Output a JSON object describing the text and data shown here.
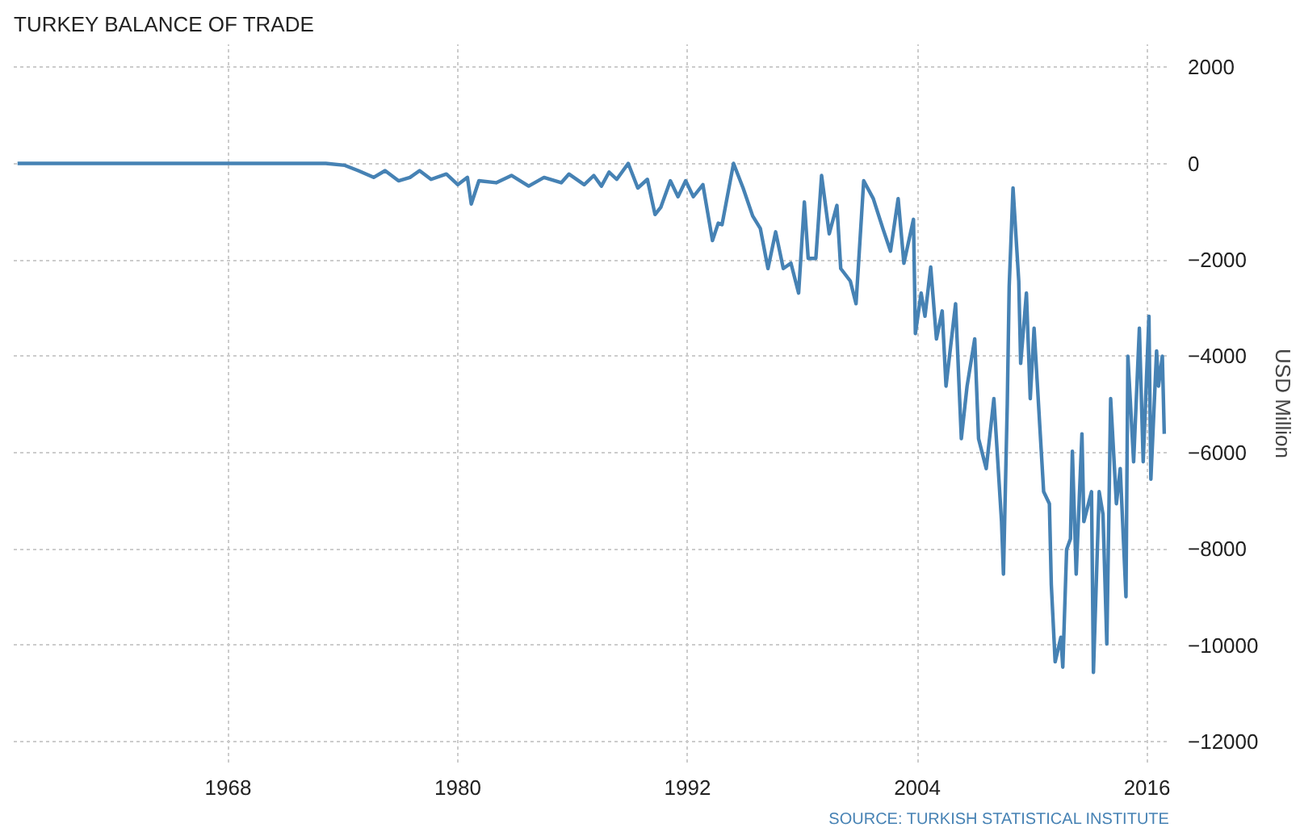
{
  "chart_data": {
    "type": "line",
    "title": "TURKEY BALANCE OF TRADE",
    "ylabel": "USD Million",
    "annotations": [
      "SOURCE: TURKISH STATISTICAL INSTITUTE"
    ],
    "x": [
      1957.0,
      1973.1,
      1974.1,
      1974.8,
      1975.6,
      1976.2,
      1976.9,
      1977.5,
      1978.0,
      1978.6,
      1979.4,
      1980.0,
      1980.5,
      1980.7,
      1981.1,
      1982.0,
      1982.8,
      1983.7,
      1984.5,
      1985.4,
      1985.8,
      1986.6,
      1987.1,
      1987.5,
      1987.9,
      1988.3,
      1988.9,
      1989.4,
      1989.9,
      1990.3,
      1990.6,
      1991.1,
      1991.5,
      1991.9,
      1992.3,
      1992.8,
      1993.3,
      1993.6,
      1993.8,
      1994.4,
      1994.9,
      1995.4,
      1995.8,
      1996.2,
      1996.6,
      1997.0,
      1997.4,
      1997.8,
      1998.1,
      1998.3,
      1998.7,
      1999.0,
      1999.4,
      1999.8,
      2000.0,
      2000.5,
      2000.8,
      2001.2,
      2001.7,
      2002.2,
      2002.6,
      2003.0,
      2003.3,
      2003.8,
      2003.9,
      2004.2,
      2004.4,
      2004.7,
      2005.0,
      2005.3,
      2005.5,
      2006.0,
      2006.3,
      2006.6,
      2007.0,
      2007.2,
      2007.6,
      2008.0,
      2008.4,
      2008.5,
      2008.7,
      2008.8,
      2009.0,
      2009.3,
      2009.4,
      2009.7,
      2009.9,
      2010.1,
      2010.4,
      2010.6,
      2010.9,
      2011.0,
      2011.2,
      2011.5,
      2011.6,
      2011.8,
      2012.0,
      2012.1,
      2012.3,
      2012.6,
      2012.7,
      2013.1,
      2013.2,
      2013.5,
      2013.7,
      2013.9,
      2014.1,
      2014.4,
      2014.6,
      2014.9,
      2015.0,
      2015.3,
      2015.6,
      2015.8,
      2016.1,
      2016.2,
      2016.5,
      2016.6,
      2016.8,
      2016.9
    ],
    "series": [
      {
        "color": "#4682b4",
        "values": [
          0,
          0,
          -40,
          -150,
          -290,
          -150,
          -360,
          -290,
          -150,
          -330,
          -220,
          -440,
          -290,
          -840,
          -360,
          -400,
          -250,
          -470,
          -290,
          -400,
          -220,
          -440,
          -250,
          -470,
          -180,
          -330,
          0,
          -510,
          -330,
          -1060,
          -910,
          -360,
          -690,
          -360,
          -690,
          -440,
          -1600,
          -1240,
          -1270,
          0,
          -510,
          -1090,
          -1350,
          -2180,
          -1420,
          -2180,
          -2070,
          -2690,
          -800,
          -1970,
          -1970,
          -250,
          -1460,
          -870,
          -2180,
          -2440,
          -2910,
          -360,
          -730,
          -1350,
          -1820,
          -730,
          -2070,
          -1160,
          -3530,
          -2690,
          -3170,
          -2150,
          -3640,
          -3060,
          -4620,
          -2910,
          -5710,
          -4620,
          -3640,
          -5710,
          -6330,
          -4880,
          -7430,
          -8520,
          -4990,
          -2550,
          -510,
          -2440,
          -4150,
          -2690,
          -4880,
          -3420,
          -5460,
          -6810,
          -7060,
          -8740,
          -10340,
          -9830,
          -10450,
          -8010,
          -7790,
          -5970,
          -8520,
          -5610,
          -7430,
          -6810,
          -10560,
          -6810,
          -7280,
          -9970,
          -4880,
          -7060,
          -6330,
          -8990,
          -4000,
          -6190,
          -3420,
          -6190,
          -3170,
          -6550,
          -3890,
          -4620,
          -4000,
          -5610
        ]
      }
    ],
    "xlim": [
      1956.8,
      2017.2
    ],
    "ylim": [
      -12430,
      2470
    ],
    "xticks": [
      1968,
      1980,
      1992,
      2004,
      2016
    ],
    "yticks": [
      2000,
      0,
      -2000,
      -4000,
      -6000,
      -8000,
      -10000,
      -12000
    ],
    "grid": true
  }
}
